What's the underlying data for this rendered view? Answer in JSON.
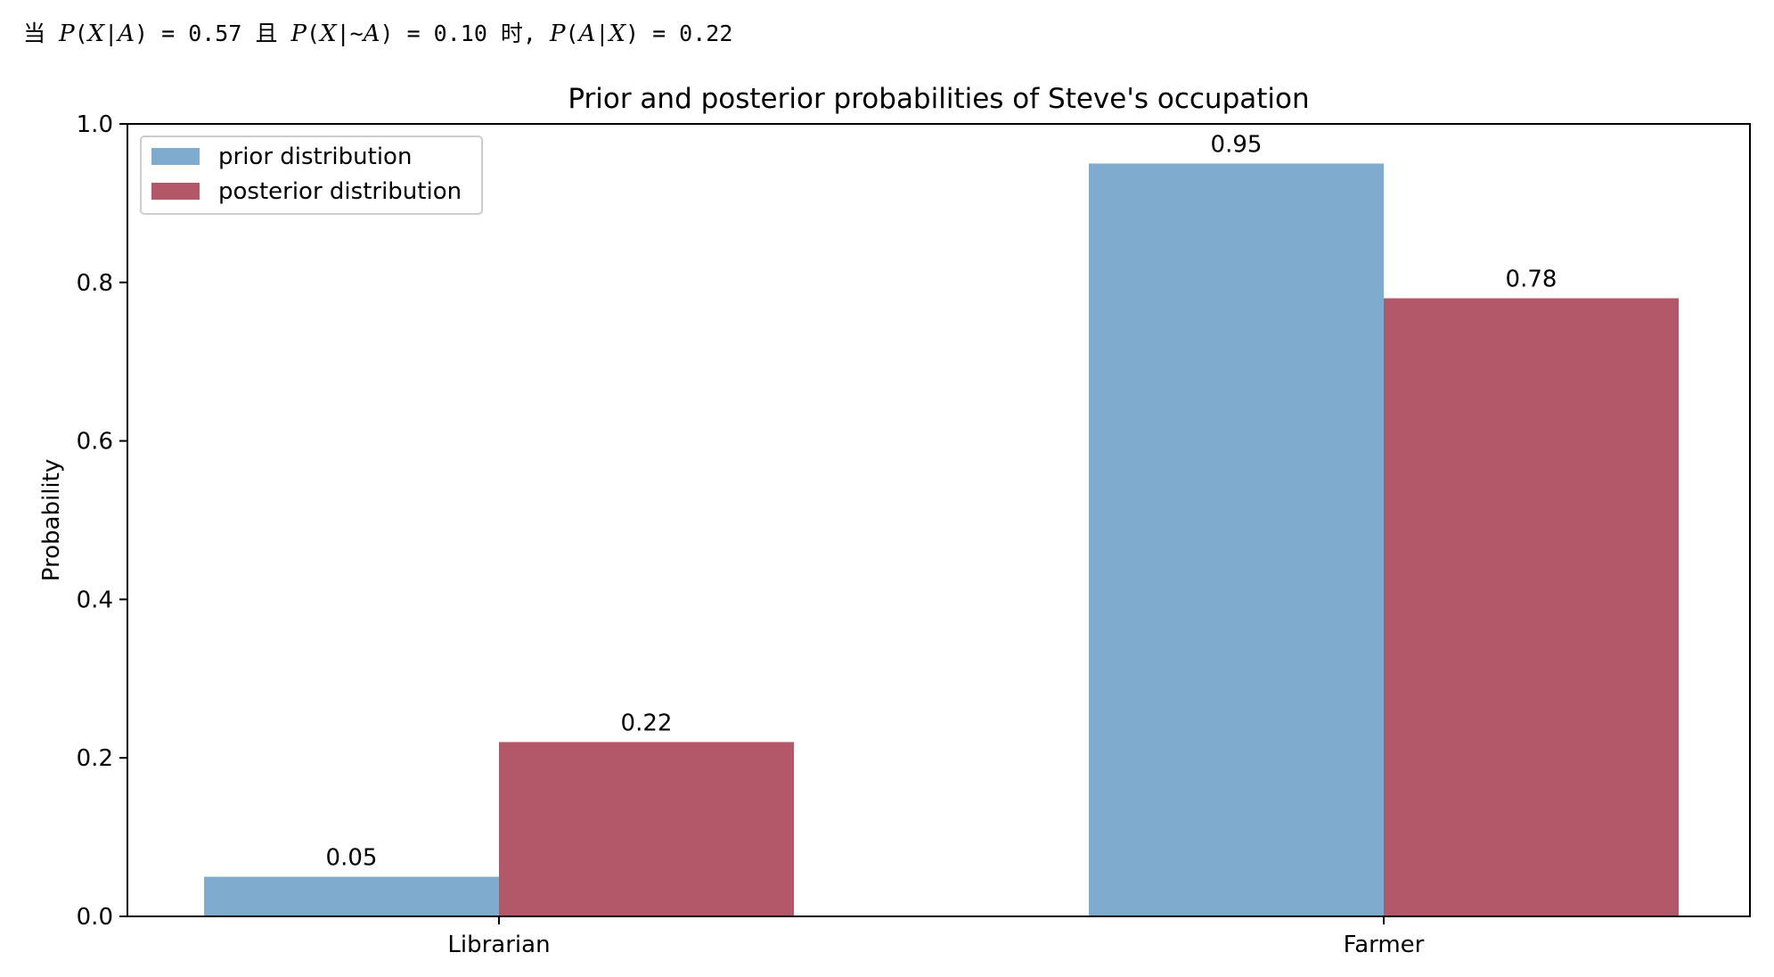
{
  "caption": {
    "parts": [
      {
        "t": "当 ",
        "cls": ""
      },
      {
        "t": "P",
        "cls": "mi"
      },
      {
        "t": "(",
        "cls": ""
      },
      {
        "t": "X",
        "cls": "mi"
      },
      {
        "t": "|",
        "cls": ""
      },
      {
        "t": "A",
        "cls": "mi"
      },
      {
        "t": ") = 0.57 且 ",
        "cls": ""
      },
      {
        "t": "P",
        "cls": "mi"
      },
      {
        "t": "(",
        "cls": ""
      },
      {
        "t": "X",
        "cls": "mi"
      },
      {
        "t": "|~",
        "cls": ""
      },
      {
        "t": "A",
        "cls": "mi"
      },
      {
        "t": ") = 0.10 时, ",
        "cls": ""
      },
      {
        "t": "P",
        "cls": "mi"
      },
      {
        "t": "(",
        "cls": ""
      },
      {
        "t": "A",
        "cls": "mi"
      },
      {
        "t": "|",
        "cls": ""
      },
      {
        "t": "X",
        "cls": "mi"
      },
      {
        "t": ") = 0.22",
        "cls": ""
      }
    ]
  },
  "chart_data": {
    "type": "bar",
    "title": "Prior and posterior probabilities of Steve's occupation",
    "xlabel": "",
    "ylabel": "Probability",
    "categories": [
      "Librarian",
      "Farmer"
    ],
    "series": [
      {
        "name": "prior distribution",
        "values": [
          0.05,
          0.95
        ],
        "labels": [
          "0.05",
          "0.95"
        ],
        "color": "#7facce"
      },
      {
        "name": "posterior distribution",
        "values": [
          0.22,
          0.78
        ],
        "labels": [
          "0.22",
          "0.78"
        ],
        "color": "#b35868"
      }
    ],
    "ylim": [
      0,
      1.0
    ],
    "yticks": [
      "0.0",
      "0.2",
      "0.4",
      "0.6",
      "0.8",
      "1.0"
    ],
    "grid": false,
    "legend_position": "top-left"
  }
}
